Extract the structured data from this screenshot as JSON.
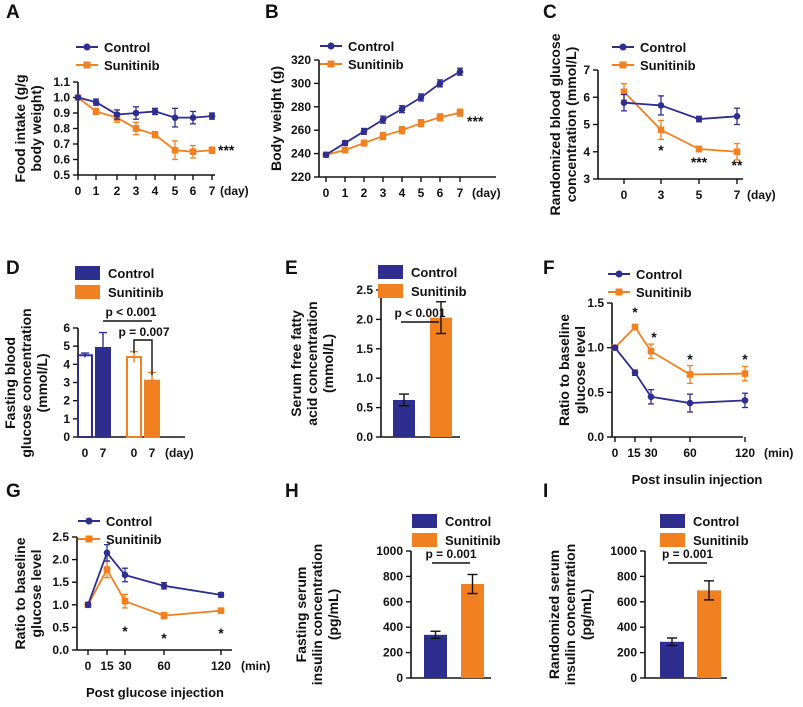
{
  "colors": {
    "control": "#2e2e8f",
    "sunitinib": "#f08020",
    "axis": "#111111"
  },
  "chart_data": [
    {
      "id": "A",
      "type": "line",
      "panel_label": "A",
      "ylabel": [
        "Food intake (g/g",
        "body weight)"
      ],
      "x": [
        0,
        1,
        2,
        3,
        4,
        5,
        6,
        7
      ],
      "x_unit": "(day)",
      "ylim": [
        0.5,
        1.1
      ],
      "yticks": [
        "0.5",
        "0.6",
        "0.7",
        "0.8",
        "0.9",
        "1.0",
        "1.1"
      ],
      "series": [
        {
          "name": "Control",
          "values": [
            1.0,
            0.97,
            0.89,
            0.9,
            0.91,
            0.87,
            0.87,
            0.88
          ]
        },
        {
          "name": "Sunitinib",
          "values": [
            1.0,
            0.91,
            0.87,
            0.8,
            0.76,
            0.66,
            0.65,
            0.66
          ]
        }
      ],
      "annotations": [
        {
          "text": "***"
        }
      ]
    },
    {
      "id": "B",
      "type": "line",
      "panel_label": "B",
      "ylabel": [
        "Body weight (g)"
      ],
      "x": [
        0,
        1,
        2,
        3,
        4,
        5,
        6,
        7
      ],
      "x_unit": "(day)",
      "ylim": [
        220,
        320
      ],
      "yticks": [
        "220",
        "240",
        "260",
        "280",
        "300",
        "320"
      ],
      "series": [
        {
          "name": "Control",
          "values": [
            239,
            249,
            259,
            269,
            278,
            288,
            300,
            310
          ]
        },
        {
          "name": "Sunitinib",
          "values": [
            239,
            243,
            249,
            255,
            260,
            266,
            271,
            275
          ]
        }
      ],
      "annotations": [
        {
          "text": "***"
        }
      ]
    },
    {
      "id": "C",
      "type": "line",
      "panel_label": "C",
      "ylabel": [
        "Randomized blood glucose",
        "concentration (mmol/L)"
      ],
      "x": [
        0,
        3,
        5,
        7
      ],
      "x_unit": "(day)",
      "ylim": [
        3,
        7
      ],
      "yticks": [
        "3",
        "4",
        "5",
        "6",
        "7"
      ],
      "series": [
        {
          "name": "Control",
          "values": [
            5.8,
            5.7,
            5.2,
            5.3
          ]
        },
        {
          "name": "Sunitinib",
          "values": [
            6.2,
            4.8,
            4.1,
            4.0
          ]
        }
      ],
      "annotations": [
        {
          "text": "*"
        },
        {
          "text": "***"
        },
        {
          "text": "**"
        }
      ]
    },
    {
      "id": "D",
      "type": "bar",
      "panel_label": "D",
      "ylabel": [
        "Fasting blood",
        "glucose concentration",
        "(mmol/L)"
      ],
      "categories": [
        "0",
        "7",
        "0",
        "7"
      ],
      "x_unit": "(day)",
      "ylim": [
        0,
        6
      ],
      "yticks": [
        "0",
        "1",
        "2",
        "3",
        "4",
        "5",
        "6"
      ],
      "groups": [
        {
          "name": "Control",
          "values": [
            4.5,
            4.9
          ]
        },
        {
          "name": "Sunitinib",
          "values": [
            4.4,
            3.1
          ]
        }
      ],
      "legend": [
        "Control",
        "Sunitinib"
      ],
      "annotations": [
        {
          "text": "p < 0.001"
        },
        {
          "text": "p = 0.007"
        }
      ]
    },
    {
      "id": "E",
      "type": "bar",
      "panel_label": "E",
      "ylabel": [
        "Serum free fatty",
        "acid concentration",
        "(mmol/L)"
      ],
      "categories": [
        "Control",
        "Sunitinib"
      ],
      "values": [
        0.63,
        2.03
      ],
      "ylim": [
        0,
        2.5
      ],
      "yticks": [
        "0.0",
        "0.5",
        "1.0",
        "1.5",
        "2.0",
        "2.5"
      ],
      "legend": [
        "Control",
        "Sunitinib"
      ],
      "annotations": [
        {
          "text": "p < 0.001"
        }
      ]
    },
    {
      "id": "F",
      "type": "line",
      "panel_label": "F",
      "ylabel": [
        "Ratio to baseline",
        "glucose level"
      ],
      "xlabel": "Post insulin injection",
      "x": [
        0,
        15,
        30,
        60,
        120
      ],
      "xtick_labels": [
        "0",
        "15",
        "30",
        "60",
        "120"
      ],
      "x_unit": "(min)",
      "ylim": [
        0,
        1.5
      ],
      "yticks": [
        "0.0",
        "0.5",
        "1.0",
        "1.5"
      ],
      "series": [
        {
          "name": "Control",
          "values": [
            1.0,
            0.72,
            0.45,
            0.38,
            0.41
          ]
        },
        {
          "name": "Sunitinib",
          "values": [
            1.0,
            1.23,
            0.96,
            0.7,
            0.71
          ]
        }
      ],
      "annotations": [
        {
          "text": "*"
        },
        {
          "text": "*"
        },
        {
          "text": "*"
        },
        {
          "text": "*"
        }
      ]
    },
    {
      "id": "G",
      "type": "line",
      "panel_label": "G",
      "ylabel": [
        "Ratio to baseline",
        "glucose level"
      ],
      "xlabel": "Post glucose injection",
      "x": [
        0,
        15,
        30,
        60,
        120
      ],
      "xtick_labels": [
        "0",
        "15",
        "30",
        "60",
        "120"
      ],
      "x_unit": "(min)",
      "ylim": [
        0,
        2.5
      ],
      "yticks": [
        "0.0",
        "0.5",
        "1.0",
        "1.5",
        "2.0",
        "2.5"
      ],
      "series": [
        {
          "name": "Control",
          "values": [
            1.0,
            2.15,
            1.66,
            1.42,
            1.22
          ]
        },
        {
          "name": "Sunitinib",
          "values": [
            1.0,
            1.78,
            1.08,
            0.76,
            0.87
          ]
        }
      ],
      "annotations": [
        {
          "text": "*"
        },
        {
          "text": "*"
        },
        {
          "text": "*"
        }
      ]
    },
    {
      "id": "H",
      "type": "bar",
      "panel_label": "H",
      "ylabel": [
        "Fasting serum",
        "insulin concentration",
        "(pg/mL)"
      ],
      "categories": [
        "Control",
        "Sunitinib"
      ],
      "values": [
        340,
        740
      ],
      "ylim": [
        0,
        1000
      ],
      "yticks": [
        "0",
        "200",
        "400",
        "600",
        "800",
        "1000"
      ],
      "legend": [
        "Control",
        "Sunitinib"
      ],
      "annotations": [
        {
          "text": "p = 0.001"
        }
      ]
    },
    {
      "id": "I",
      "type": "bar",
      "panel_label": "I",
      "ylabel": [
        "Randomized serum",
        "insulin concentration",
        "(pg/mL)"
      ],
      "categories": [
        "Control",
        "Sunitinib"
      ],
      "values": [
        285,
        690
      ],
      "ylim": [
        0,
        1000
      ],
      "yticks": [
        "0",
        "200",
        "400",
        "600",
        "800",
        "1000"
      ],
      "legend": [
        "Control",
        "Sunitinib"
      ],
      "annotations": [
        {
          "text": "p = 0.001"
        }
      ]
    }
  ]
}
